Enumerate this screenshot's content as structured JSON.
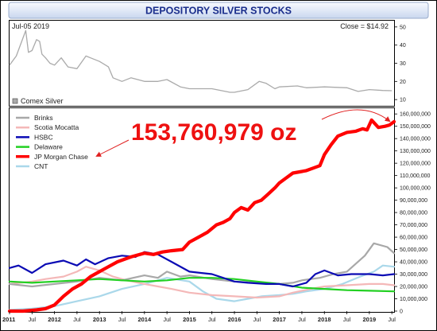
{
  "chart_data": [
    {
      "type": "line",
      "title": "DEPOSITORY SILVER STOCKS",
      "header_left": "Jul-05  2019",
      "header_right": "Close = $14.92",
      "legend": "Comex Silver",
      "y_ticks": [
        10,
        20,
        30,
        40,
        50
      ],
      "ylim": [
        7,
        53
      ],
      "series": [
        {
          "name": "Comex Silver",
          "color": "#aaaaaa",
          "x": [
            2011.0,
            2011.15,
            2011.3,
            2011.36,
            2011.42,
            2011.5,
            2011.6,
            2011.67,
            2011.72,
            2011.8,
            2011.9,
            2012.0,
            2012.15,
            2012.3,
            2012.5,
            2012.7,
            2012.8,
            2013.0,
            2013.2,
            2013.3,
            2013.5,
            2013.7,
            2014.0,
            2014.3,
            2014.5,
            2014.8,
            2015.0,
            2015.5,
            2015.9,
            2016.0,
            2016.3,
            2016.55,
            2016.7,
            2016.9,
            2017.0,
            2017.4,
            2017.6,
            2018.0,
            2018.5,
            2018.75,
            2019.0,
            2019.3,
            2019.5
          ],
          "values": [
            29,
            34,
            44,
            48,
            36,
            37,
            43,
            42,
            35,
            33,
            30,
            29,
            33,
            28,
            27,
            34,
            33,
            31,
            28,
            22,
            20,
            22,
            20,
            20,
            21,
            17,
            16,
            16,
            14,
            14,
            15.5,
            20,
            19,
            16,
            17,
            17.5,
            16.5,
            17,
            16.5,
            14.5,
            15.5,
            15,
            14.9
          ]
        }
      ]
    },
    {
      "type": "line",
      "annotation": "153,760,979 oz",
      "x_ticks": [
        "2011",
        "Jul",
        "2012",
        "Jul",
        "2013",
        "Jul",
        "2014",
        "Jul",
        "2015",
        "Jul",
        "2016",
        "Jul",
        "2017",
        "Jul",
        "2018",
        "Jul",
        "2019",
        "Jul"
      ],
      "x_tick_bold": [
        true,
        false,
        true,
        false,
        true,
        false,
        true,
        false,
        true,
        false,
        true,
        false,
        true,
        false,
        true,
        false,
        true,
        false
      ],
      "y_ticks": [
        "0",
        "10,000,000",
        "20,000,000",
        "30,000,000",
        "40,000,000",
        "50,000,000",
        "60,000,000",
        "70,000,000",
        "80,000,000",
        "90,000,000",
        "100,000,000",
        "110,000,000",
        "120,000,000",
        "130,000,000",
        "140,000,000",
        "150,000,000",
        "160,000,000"
      ],
      "ylim": [
        0,
        164000000
      ],
      "xlim": [
        2011.0,
        2019.55
      ],
      "series": [
        {
          "name": "Brinks",
          "color": "#a8a8a8",
          "x": [
            2011.0,
            2011.5,
            2012.0,
            2012.5,
            2013.0,
            2013.5,
            2014.0,
            2014.3,
            2014.5,
            2014.8,
            2015.0,
            2015.5,
            2016.0,
            2016.5,
            2017.0,
            2017.3,
            2017.5,
            2017.9,
            2018.2,
            2018.5,
            2018.9,
            2019.1,
            2019.4,
            2019.55
          ],
          "values": [
            22000000,
            20000000,
            22000000,
            24000000,
            27000000,
            25000000,
            29000000,
            27000000,
            32000000,
            28000000,
            29000000,
            26000000,
            24000000,
            23000000,
            22000000,
            23000000,
            25000000,
            27000000,
            30000000,
            32000000,
            45000000,
            55000000,
            52000000,
            47000000
          ]
        },
        {
          "name": "Scotia Mocatta",
          "color": "#f4b8b8",
          "x": [
            2011.0,
            2011.5,
            2011.8,
            2012.2,
            2012.5,
            2012.7,
            2013.0,
            2013.3,
            2013.6,
            2014.0,
            2014.3,
            2014.6,
            2015.0,
            2015.5,
            2016.0,
            2016.5,
            2017.0,
            2017.3,
            2017.7,
            2018.0,
            2018.5,
            2019.0,
            2019.3,
            2019.55
          ],
          "values": [
            22000000,
            24000000,
            26000000,
            28000000,
            32000000,
            36000000,
            33000000,
            28000000,
            25000000,
            22000000,
            20000000,
            18000000,
            15000000,
            13000000,
            12000000,
            11000000,
            12000000,
            15000000,
            18000000,
            20000000,
            21000000,
            22000000,
            22000000,
            21000000
          ]
        },
        {
          "name": "HSBC",
          "color": "#0a0ab4",
          "x": [
            2011.0,
            2011.2,
            2011.5,
            2011.8,
            2012.2,
            2012.5,
            2012.7,
            2012.9,
            2013.2,
            2013.5,
            2013.8,
            2014.0,
            2014.3,
            2014.6,
            2015.0,
            2015.5,
            2016.0,
            2016.3,
            2016.7,
            2017.0,
            2017.3,
            2017.6,
            2017.8,
            2018.0,
            2018.3,
            2018.6,
            2019.0,
            2019.3,
            2019.55
          ],
          "values": [
            35000000,
            37000000,
            31000000,
            38000000,
            41000000,
            37000000,
            42000000,
            38000000,
            43000000,
            45000000,
            44000000,
            48000000,
            46000000,
            40000000,
            32000000,
            30000000,
            24000000,
            23000000,
            22000000,
            22000000,
            20000000,
            23000000,
            30000000,
            33000000,
            29000000,
            30000000,
            30000000,
            29000000,
            30000000
          ]
        },
        {
          "name": "Delaware",
          "color": "#22d022",
          "x": [
            2011.0,
            2011.5,
            2012.0,
            2012.5,
            2013.0,
            2013.5,
            2014.0,
            2014.5,
            2015.0,
            2015.5,
            2016.0,
            2016.5,
            2017.0,
            2017.5,
            2018.0,
            2018.5,
            2019.0,
            2019.55
          ],
          "values": [
            24000000,
            23000000,
            24000000,
            25000000,
            26000000,
            25000000,
            24000000,
            25000000,
            27000000,
            27000000,
            26000000,
            24000000,
            22000000,
            19000000,
            18000000,
            17000000,
            16500000,
            16000000
          ]
        },
        {
          "name": "JP Morgan Chase",
          "color": "#ff0000",
          "x": [
            2011.0,
            2011.3,
            2011.6,
            2011.8,
            2012.0,
            2012.2,
            2012.4,
            2012.6,
            2012.8,
            2013.0,
            2013.2,
            2013.4,
            2013.7,
            2014.0,
            2014.2,
            2014.4,
            2014.6,
            2014.85,
            2015.0,
            2015.2,
            2015.4,
            2015.6,
            2015.75,
            2015.9,
            2016.0,
            2016.15,
            2016.3,
            2016.45,
            2016.6,
            2016.75,
            2016.9,
            2017.0,
            2017.15,
            2017.3,
            2017.45,
            2017.6,
            2017.75,
            2017.9,
            2018.0,
            2018.15,
            2018.3,
            2018.5,
            2018.7,
            2018.85,
            2018.95,
            2019.05,
            2019.2,
            2019.35,
            2019.45,
            2019.55
          ],
          "values": [
            0,
            0,
            1000000,
            2000000,
            5000000,
            12000000,
            18000000,
            22000000,
            28000000,
            32000000,
            36000000,
            40000000,
            44000000,
            47000000,
            46000000,
            48000000,
            49000000,
            50000000,
            56000000,
            60000000,
            64000000,
            70000000,
            72000000,
            75000000,
            80000000,
            84000000,
            82000000,
            88000000,
            90000000,
            95000000,
            100000000,
            104000000,
            108000000,
            112000000,
            113000000,
            114000000,
            116000000,
            118000000,
            127000000,
            135000000,
            142000000,
            145000000,
            146000000,
            148000000,
            147000000,
            155000000,
            149000000,
            150000000,
            151000000,
            153760979
          ]
        },
        {
          "name": "CNT",
          "color": "#aad8ea",
          "x": [
            2011.0,
            2011.5,
            2012.0,
            2012.5,
            2013.0,
            2013.5,
            2014.0,
            2014.5,
            2015.0,
            2015.3,
            2015.6,
            2016.0,
            2016.3,
            2016.6,
            2017.0,
            2017.3,
            2017.6,
            2018.0,
            2018.4,
            2018.8,
            2019.1,
            2019.3,
            2019.55
          ],
          "values": [
            1000000,
            2000000,
            4000000,
            8000000,
            12000000,
            18000000,
            22000000,
            27000000,
            24000000,
            16000000,
            10000000,
            8000000,
            10000000,
            12000000,
            13000000,
            14000000,
            16000000,
            18000000,
            22000000,
            28000000,
            32000000,
            37000000,
            36000000
          ]
        }
      ]
    }
  ]
}
